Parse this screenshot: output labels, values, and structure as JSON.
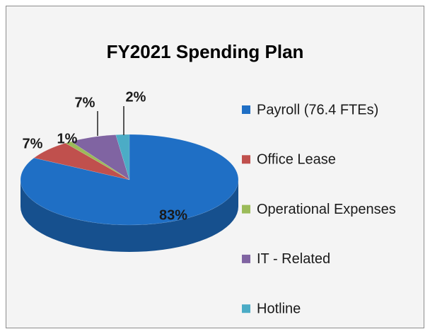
{
  "chart_data": {
    "type": "pie",
    "title": "FY2021 Spending Plan",
    "categories": [
      "Payroll (76.4 FTEs)",
      "Office Lease",
      "Operational Expenses",
      "IT - Related",
      "Hotline"
    ],
    "values": [
      83,
      7,
      1,
      7,
      2
    ],
    "value_labels": [
      "83%",
      "7%",
      "1%",
      "7%",
      "2%"
    ],
    "colors": [
      "#1f6fc5",
      "#c0504d",
      "#9bbb59",
      "#8064a2",
      "#4bacc6"
    ]
  }
}
